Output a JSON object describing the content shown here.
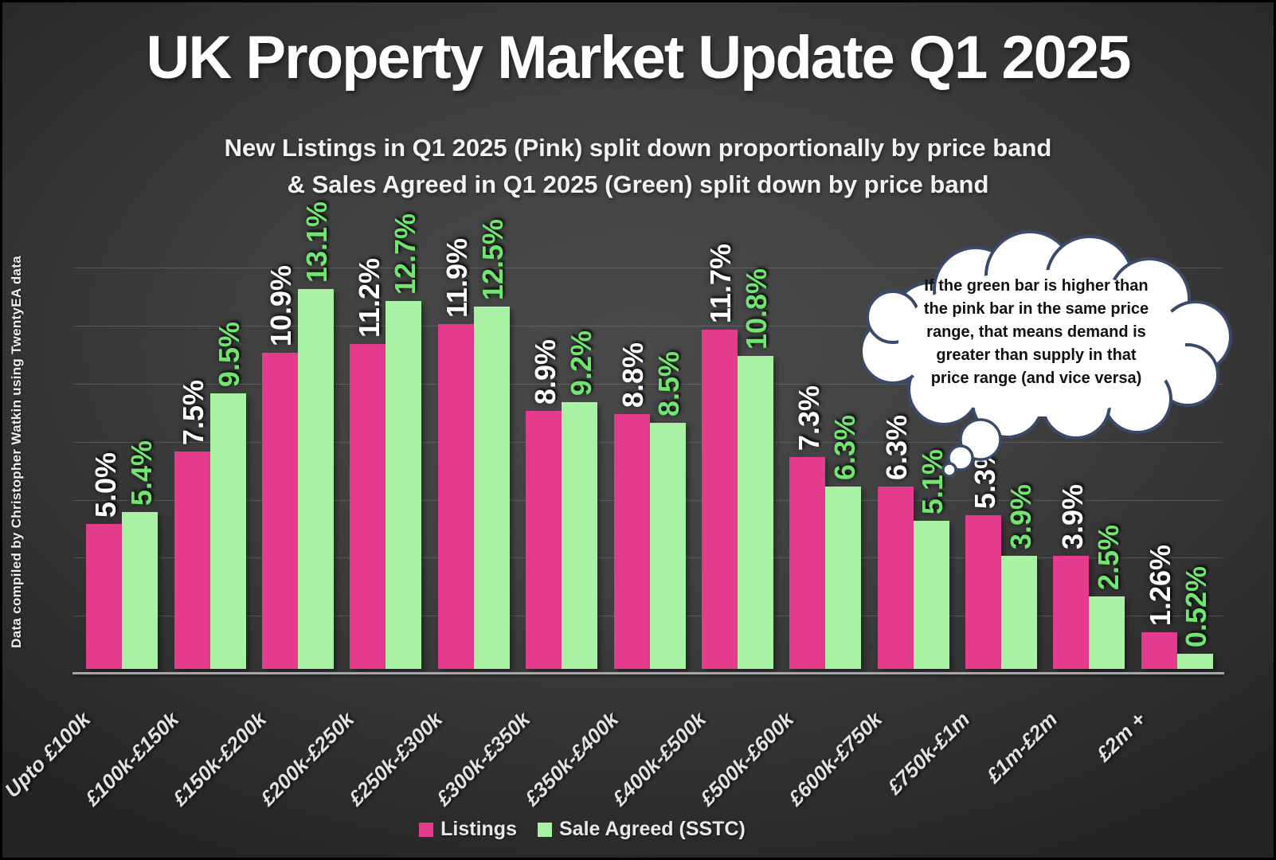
{
  "page": {
    "credit": "Data compiled by Christopher Watkin using TwentyEA data"
  },
  "header": {
    "title": "UK Property Market Update Q1 2025",
    "subtitle_line1": "New Listings in Q1 2025 (Pink) split down proportionally by price band",
    "subtitle_line2": "& Sales Agreed in Q1 2025 (Green) split down by price band"
  },
  "annotation": {
    "lines": [
      "If the green bar is higher than",
      "the pink bar in the same price",
      "range, that means demand is",
      "greater than supply in that",
      "price range (and vice versa)"
    ]
  },
  "chart_data": {
    "type": "bar",
    "title": "UK Property Market Update Q1 2025",
    "categories": [
      "Upto £100k",
      "£100k-£150k",
      "£150k-£200k",
      "£200k-£250k",
      "£250k-£300k",
      "£300k-£350k",
      "£350k-£400k",
      "£400k-£500k",
      "£500k-£600k",
      "£600k-£750k",
      "£750k-£1m",
      "£1m-£2m",
      "£2m +"
    ],
    "series": [
      {
        "name": "Listings",
        "color": "#E53B8C",
        "label_color": "#FFFFFF",
        "values": [
          5.0,
          7.5,
          10.9,
          11.2,
          11.9,
          8.9,
          8.8,
          11.7,
          7.3,
          6.3,
          5.3,
          3.9,
          1.26
        ],
        "labels": [
          "5.0%",
          "7.5%",
          "10.9%",
          "11.2%",
          "11.9%",
          "8.9%",
          "8.8%",
          "11.7%",
          "7.3%",
          "6.3%",
          "5.3%",
          "3.9%",
          "1.26%"
        ]
      },
      {
        "name": "Sale Agreed (SSTC)",
        "color": "#A9F2A3",
        "label_color": "#70E570",
        "values": [
          5.4,
          9.5,
          13.1,
          12.7,
          12.5,
          9.2,
          8.5,
          10.8,
          6.3,
          5.1,
          3.9,
          2.5,
          0.52
        ],
        "labels": [
          "5.4%",
          "9.5%",
          "13.1%",
          "12.7%",
          "12.5%",
          "9.2%",
          "8.5%",
          "10.8%",
          "6.3%",
          "5.1%",
          "3.9%",
          "2.5%",
          "0.52%"
        ]
      }
    ],
    "ylabel": "",
    "xlabel": "",
    "ylim": [
      0,
      14
    ],
    "gridline_step_pct": 2,
    "grid": true,
    "legend_position": "bottom"
  }
}
